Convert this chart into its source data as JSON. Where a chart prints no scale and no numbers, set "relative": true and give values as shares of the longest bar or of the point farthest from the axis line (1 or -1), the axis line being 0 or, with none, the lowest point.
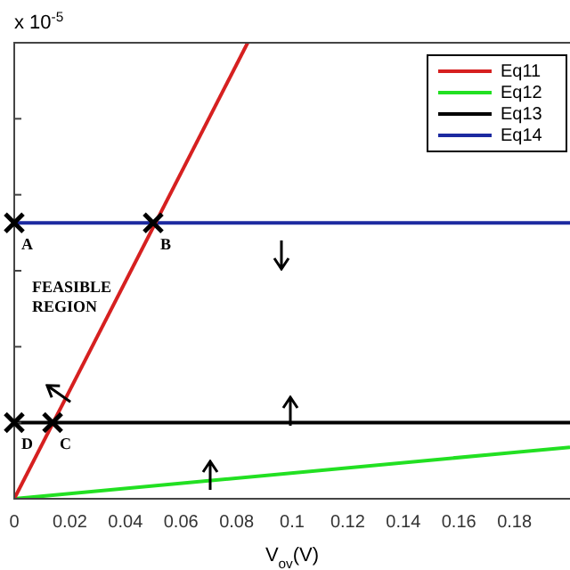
{
  "chart_data": {
    "type": "line",
    "relative": true,
    "xlabel": "V$_{ov}$(V)",
    "xlim": [
      0,
      0.2
    ],
    "xticks": [
      0,
      0.02,
      0.04,
      0.06,
      0.08,
      0.1,
      0.12,
      0.14,
      0.16,
      0.18
    ],
    "grid": false,
    "legend": "top right",
    "line_style": "solid",
    "series": [
      {
        "name": "Eq11",
        "color": "#d62020",
        "x": [
          0,
          0.084
        ],
        "values": [
          0,
          1
        ]
      },
      {
        "name": "Eq12",
        "color": "#22e022",
        "x": [
          0,
          0.2
        ],
        "values": [
          0,
          0.113
        ]
      },
      {
        "name": "Eq13",
        "color": "#000000",
        "x": [
          0,
          0.2
        ],
        "values": [
          0.167,
          0.167
        ]
      },
      {
        "name": "Eq14",
        "color": "#1c2aa0",
        "x": [
          0,
          0.2
        ],
        "values": [
          0.605,
          0.605
        ]
      }
    ],
    "annotations": [
      "x 10$^{-5}$",
      "FEASIBLE REGION",
      {
        "text": "A",
        "x": 0,
        "y": 0.605
      },
      {
        "text": "B",
        "x": 0.05,
        "y": 0.605
      },
      {
        "text": "C",
        "x": 0.0138,
        "y": 0.167
      },
      {
        "text": "D",
        "x": 0,
        "y": 0.167
      }
    ]
  }
}
